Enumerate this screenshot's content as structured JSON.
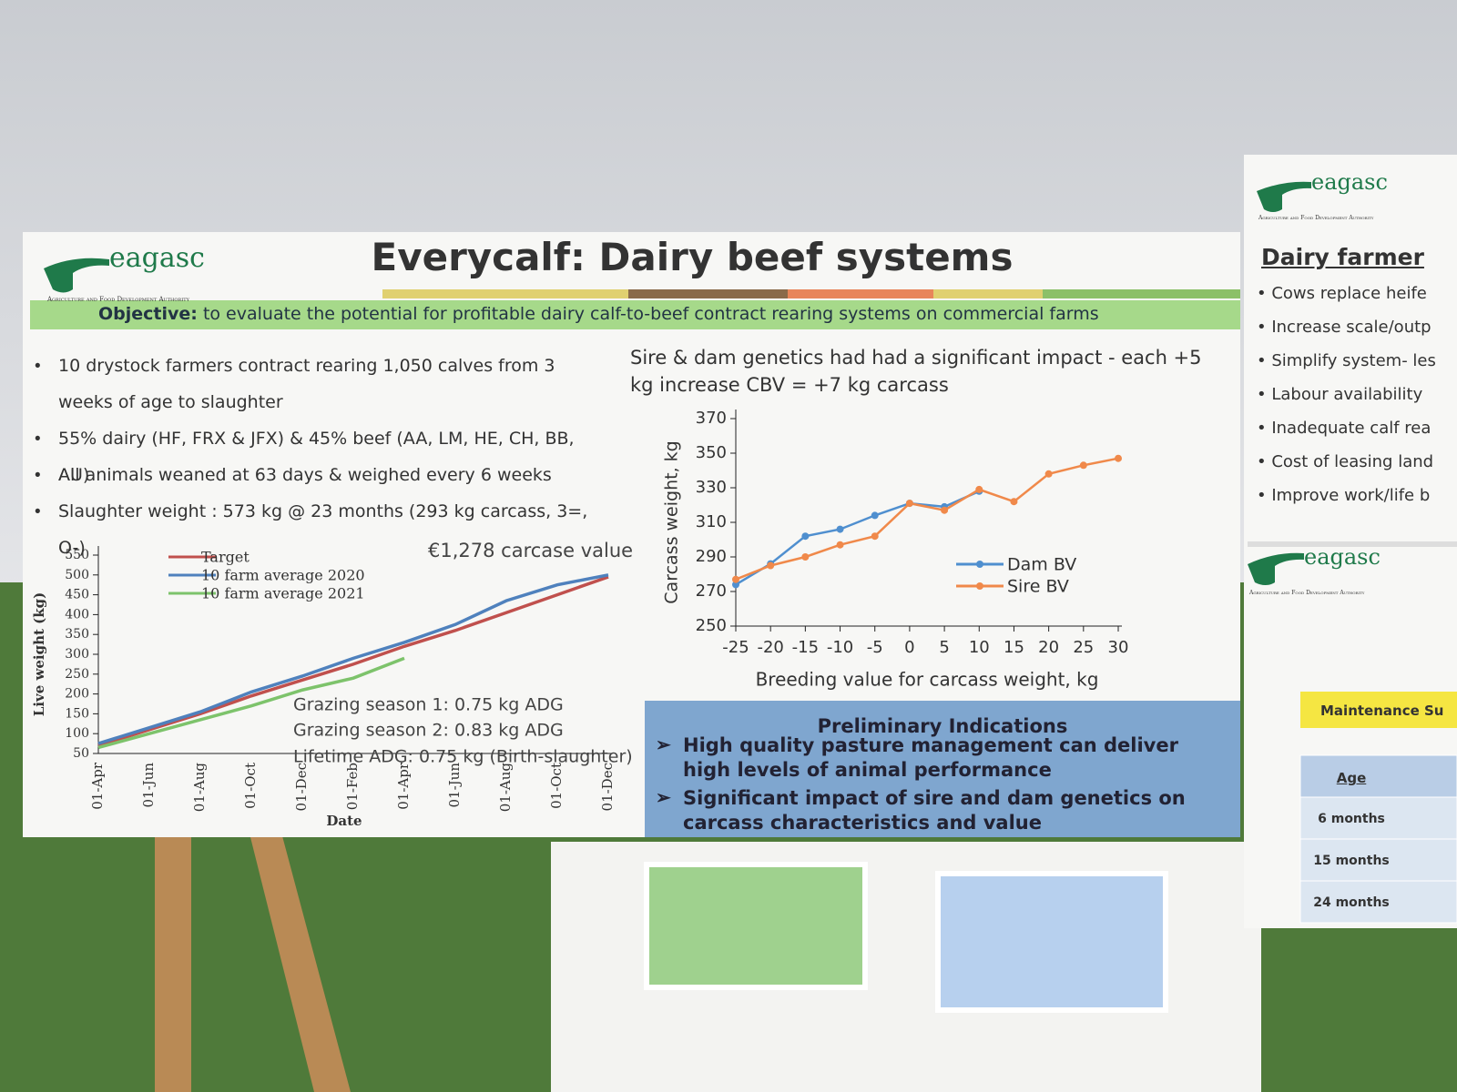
{
  "header": {
    "logo_text": "eagasc",
    "logo_tagline": "Agriculture and Food Development Authority",
    "title": "Everycalf: Dairy beef systems",
    "objective_label": "Objective:",
    "objective_text": "to evaluate the potential for profitable dairy calf-to-beef contract rearing systems on commercial farms"
  },
  "bullets": [
    "10 drystock farmers contract rearing 1,050 calves from 3 weeks of age to slaughter",
    "55% dairy (HF, FRX & JFX) & 45% beef (AA, LM, HE, CH, BB, AU)",
    "All animals weaned at 63 days & weighed every 6 weeks",
    "Slaughter weight : 573 kg @ 23 months (293 kg carcass, 3=, O-)"
  ],
  "indications": {
    "title": "Preliminary Indications",
    "items": [
      "High quality pasture management can deliver high levels of animal performance",
      "Significant impact of sire and dam genetics on carcass characteristics and value"
    ]
  },
  "side_panel": {
    "logo_text": "eagasc",
    "logo_tagline": "Agriculture and Food Development Authority",
    "heading": "Dairy farmer",
    "bullets": [
      "Cows replace heife",
      "Increase scale/outp",
      "Simplify system- les",
      "Labour availability",
      "Inadequate calf rea",
      "Cost of leasing land",
      "Improve work/life b"
    ],
    "logo2_text": "eagasc",
    "logo2_tagline": "Agriculture and Food Development Authority",
    "button": "Maintenance Su",
    "table": {
      "header": "Age",
      "rows": [
        "6 months",
        "15 months",
        "24 months"
      ]
    }
  },
  "chart_data": [
    {
      "type": "line",
      "x_label": "Date",
      "y_label": "Live weight (kg)",
      "categories": [
        "01-Apr",
        "01-Jun",
        "01-Aug",
        "01-Oct",
        "01-Dec",
        "01-Feb",
        "01-Apr",
        "01-Jun",
        "01-Aug",
        "01-Oct",
        "01-Dec"
      ],
      "ylim": [
        50,
        550
      ],
      "yticks": [
        50,
        100,
        150,
        200,
        250,
        300,
        350,
        400,
        450,
        500,
        550
      ],
      "series": [
        {
          "name": "Target",
          "color": "#c0504d",
          "values": [
            70,
            110,
            150,
            195,
            235,
            275,
            320,
            360,
            405,
            450,
            495
          ]
        },
        {
          "name": "10 farm average 2020",
          "color": "#4f81bd",
          "values": [
            75,
            115,
            155,
            205,
            245,
            290,
            330,
            375,
            435,
            475,
            500
          ]
        },
        {
          "name": "10 farm average 2021",
          "color": "#7dc36b",
          "values": [
            65,
            100,
            135,
            170,
            210,
            240,
            290,
            null,
            null,
            null,
            null
          ]
        }
      ],
      "annotations": [
        "€1,278 carcase value",
        "Grazing season 1: 0.75 kg ADG",
        "Grazing season 2: 0.83 kg ADG",
        "Lifetime ADG: 0.75 kg (Birth-slaughter)"
      ]
    },
    {
      "type": "line",
      "title": "Sire & dam genetics had had a significant impact - each +5 kg increase CBV = +7 kg carcass",
      "x_label": "Breeding value for carcass weight, kg",
      "y_label": "Carcass weight, kg",
      "xlim": [
        -25,
        30
      ],
      "xticks": [
        -25,
        -20,
        -15,
        -10,
        -5,
        0,
        5,
        10,
        15,
        20,
        25,
        30
      ],
      "ylim": [
        250,
        370
      ],
      "yticks": [
        250,
        270,
        290,
        310,
        330,
        350,
        370
      ],
      "markers": true,
      "series": [
        {
          "name": "Dam BV",
          "color": "#4f8fcf",
          "x": [
            -25,
            -20,
            -15,
            -10,
            -5,
            0,
            5,
            10
          ],
          "values": [
            274,
            286,
            302,
            306,
            314,
            321,
            319,
            328
          ]
        },
        {
          "name": "Sire BV",
          "color": "#f0894a",
          "x": [
            -25,
            -20,
            -15,
            -10,
            -5,
            0,
            5,
            10,
            15,
            20,
            25,
            30
          ],
          "values": [
            277,
            285,
            290,
            297,
            302,
            321,
            317,
            329,
            322,
            338,
            343,
            347
          ]
        }
      ]
    }
  ]
}
